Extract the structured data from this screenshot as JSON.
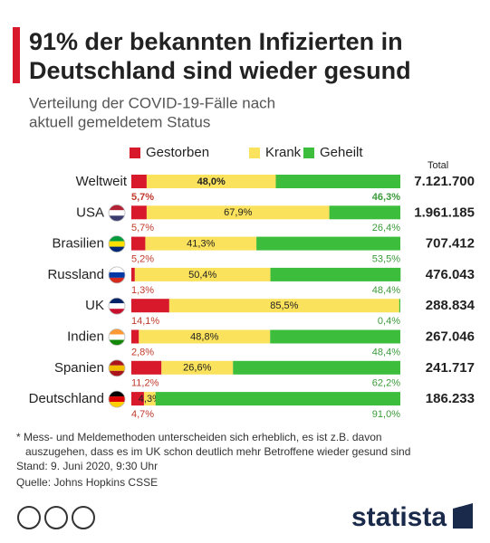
{
  "chart_data": {
    "type": "bar",
    "orientation": "horizontal",
    "stacked": true,
    "title": [
      "91% der bekannten Infizierten in",
      "Deutschland sind wieder gesund"
    ],
    "subtitle": [
      "Verteilung der COVID-19-Fälle nach",
      "aktuell gemeldetem Status"
    ],
    "categories": [
      "Weltweit",
      "USA",
      "Brasilien",
      "Russland",
      "UK",
      "Indien",
      "Spanien",
      "Deutschland"
    ],
    "xlim": [
      0,
      100
    ],
    "series": [
      {
        "name": "Gestorben",
        "color": "#d7192b",
        "values": [
          5.7,
          5.7,
          5.2,
          1.3,
          14.1,
          2.8,
          11.2,
          4.7
        ],
        "value_labels": [
          "5,7%",
          "5,7%",
          "5,2%",
          "1,3%",
          "14,1%",
          "2,8%",
          "11,2%",
          "4,7%"
        ]
      },
      {
        "name": "Krank",
        "color": "#fbe25c",
        "values": [
          48.0,
          67.9,
          41.3,
          50.4,
          85.5,
          48.8,
          26.6,
          4.3
        ],
        "value_labels": [
          "48,0%",
          "67,9%",
          "41,3%",
          "50,4%",
          "85,5%",
          "48,8%",
          "26,6%",
          "4,3%"
        ]
      },
      {
        "name": "Geheilt",
        "color": "#3cbd3c",
        "values": [
          46.3,
          26.4,
          53.5,
          48.4,
          0.4,
          48.4,
          62.2,
          91.0
        ],
        "value_labels": [
          "46,3%",
          "26,4%",
          "53,5%",
          "48,4%",
          "0,4%",
          "48,4%",
          "62,2%",
          "91,0%"
        ]
      }
    ],
    "totals": {
      "name": "Total",
      "values": [
        7121700,
        1961185,
        707412,
        476043,
        288834,
        267046,
        241717,
        186233
      ],
      "value_labels": [
        "7.121.700",
        "1.961.185",
        "707.412",
        "476.043",
        "288.834",
        "267.046",
        "241.717",
        "186.233"
      ]
    },
    "notes": [
      "* Mess- und Meldemethoden unterscheiden sich erheblich, es ist z.B. davon",
      "auszugehen, dass es im UK schon deutlich mehr Betroffene wieder gesund sind",
      "Stand: 9. Juni 2020, 9:30 Uhr"
    ],
    "source": "Quelle: Johns Hopkins CSSE",
    "brand": "statista"
  }
}
